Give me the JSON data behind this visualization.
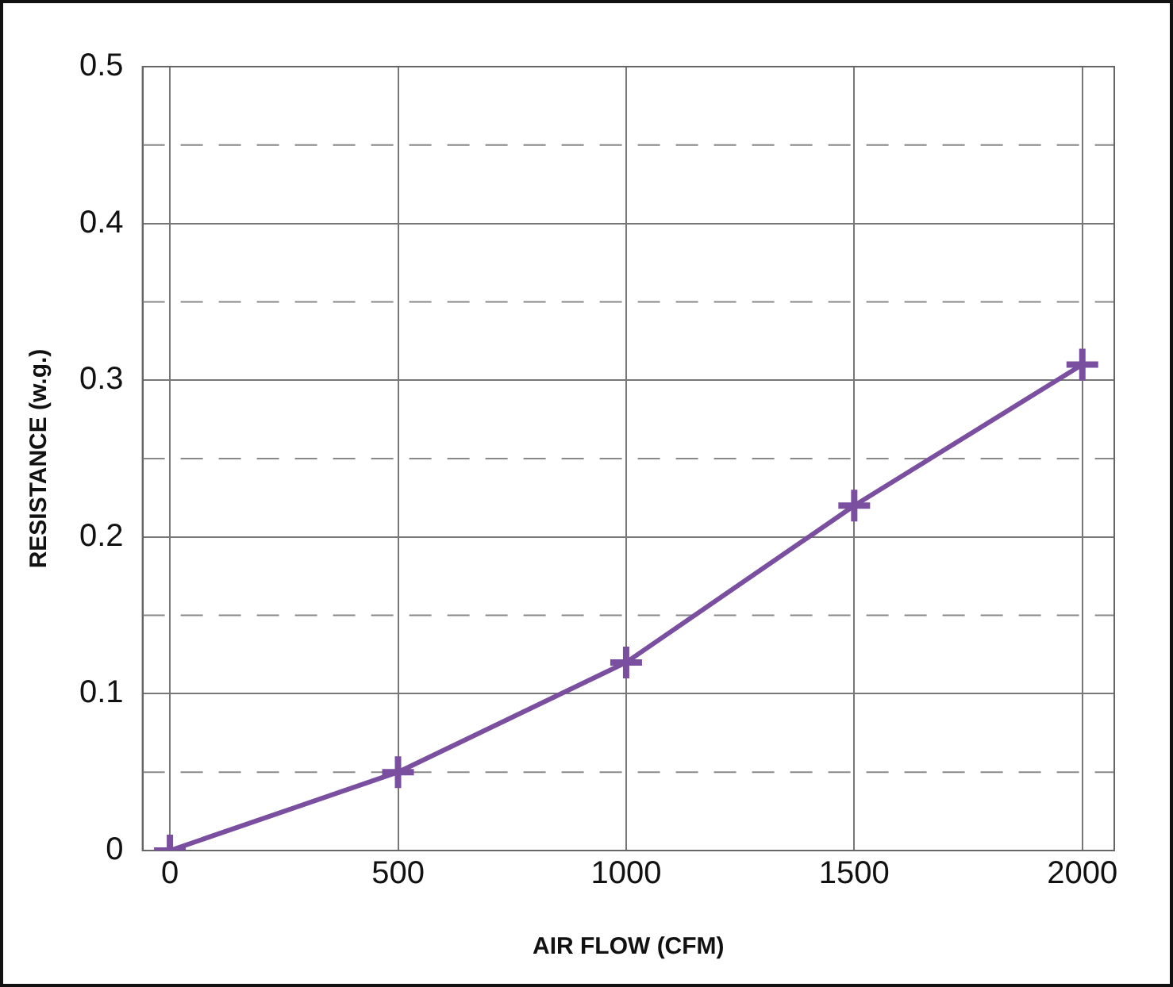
{
  "chart_data": {
    "type": "line",
    "xlabel": "AIR FLOW (CFM)",
    "ylabel": "RESISTANCE (w.g.)",
    "x": [
      0,
      500,
      1000,
      1500,
      2000
    ],
    "series": [
      {
        "color": "#7b4fa0",
        "values": [
          0,
          0.05,
          0.12,
          0.22,
          0.31
        ]
      }
    ],
    "xlim": [
      -60,
      2070
    ],
    "xticks": [
      0,
      500,
      1000,
      1500,
      2000
    ],
    "ylim": [
      0,
      0.5
    ],
    "yticks": [
      0,
      {
        "value": 0.05,
        "label": null
      },
      0.1,
      {
        "value": 0.15,
        "label": null
      },
      0.2,
      {
        "value": 0.25,
        "label": null
      },
      0.3,
      {
        "value": 0.35,
        "label": null
      },
      0.4,
      {
        "value": 0.45,
        "label": null
      },
      0.5
    ],
    "grid": true,
    "marker": "cross",
    "line_style": "solid",
    "legend": false
  }
}
